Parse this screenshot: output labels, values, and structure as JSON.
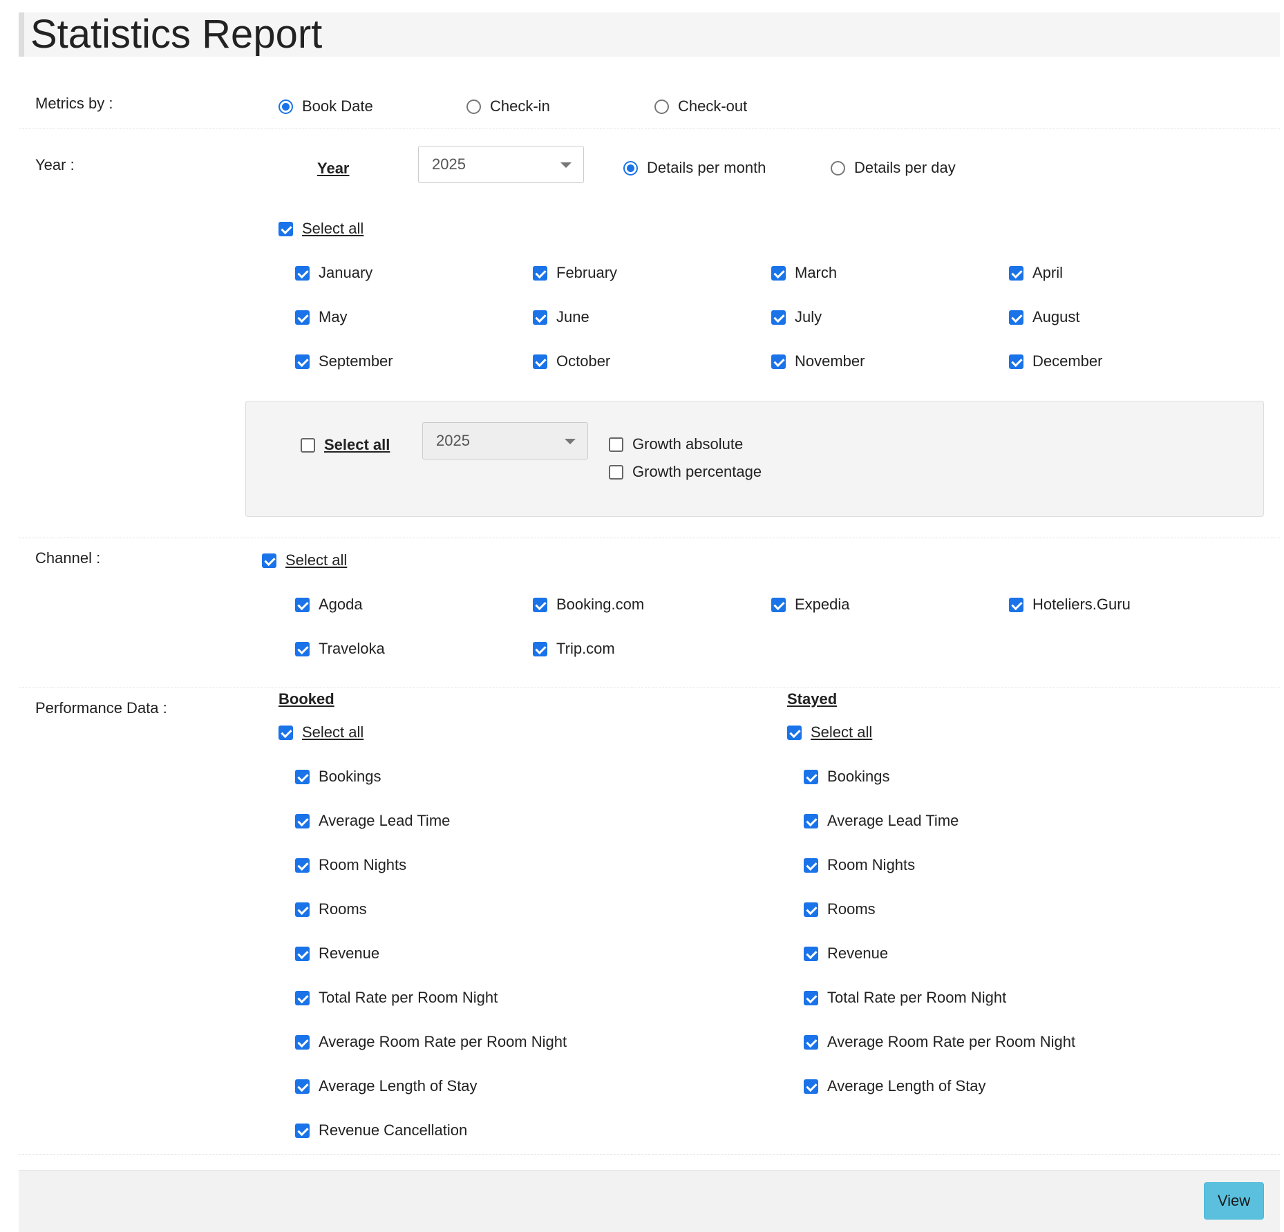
{
  "page_title": "Statistics Report",
  "metrics_by": {
    "label": "Metrics by :",
    "options": [
      {
        "label": "Book Date",
        "selected": true
      },
      {
        "label": "Check-in",
        "selected": false
      },
      {
        "label": "Check-out",
        "selected": false
      }
    ]
  },
  "year_section": {
    "label": "Year :",
    "year_heading": "Year",
    "year_value": "2025",
    "detail_options": [
      {
        "label": "Details per month",
        "selected": true
      },
      {
        "label": "Details per day",
        "selected": false
      }
    ],
    "select_all_label": "Select all",
    "months": [
      {
        "label": "January",
        "checked": true
      },
      {
        "label": "February",
        "checked": true
      },
      {
        "label": "March",
        "checked": true
      },
      {
        "label": "April",
        "checked": true
      },
      {
        "label": "May",
        "checked": true
      },
      {
        "label": "June",
        "checked": true
      },
      {
        "label": "July",
        "checked": true
      },
      {
        "label": "August",
        "checked": true
      },
      {
        "label": "September",
        "checked": true
      },
      {
        "label": "October",
        "checked": true
      },
      {
        "label": "November",
        "checked": true
      },
      {
        "label": "December",
        "checked": true
      }
    ],
    "comparison": {
      "select_all_label": "Select all",
      "select_all_checked": false,
      "year_value": "2025",
      "growth_absolute": "Growth absolute",
      "growth_percentage": "Growth percentage"
    }
  },
  "channel_section": {
    "label": "Channel :",
    "select_all_label": "Select all",
    "channels": [
      {
        "label": "Agoda",
        "checked": true
      },
      {
        "label": "Booking.com",
        "checked": true
      },
      {
        "label": "Expedia",
        "checked": true
      },
      {
        "label": "Hoteliers.Guru",
        "checked": true
      },
      {
        "label": "Traveloka",
        "checked": true
      },
      {
        "label": "Trip.com",
        "checked": true
      }
    ]
  },
  "performance_section": {
    "label": "Performance Data :",
    "booked": {
      "heading": "Booked",
      "select_all_label": "Select all",
      "items": [
        "Bookings",
        "Average Lead Time",
        "Room Nights",
        "Rooms",
        "Revenue",
        "Total Rate per Room Night",
        "Average Room Rate per Room Night",
        "Average Length of Stay",
        "Revenue Cancellation"
      ]
    },
    "stayed": {
      "heading": "Stayed",
      "select_all_label": "Select all",
      "items": [
        "Bookings",
        "Average Lead Time",
        "Room Nights",
        "Rooms",
        "Revenue",
        "Total Rate per Room Night",
        "Average Room Rate per Room Night",
        "Average Length of Stay"
      ]
    }
  },
  "footer": {
    "view_label": "View"
  },
  "colors": {
    "accent": "#1a73e8",
    "view_button": "#5bc0de"
  }
}
